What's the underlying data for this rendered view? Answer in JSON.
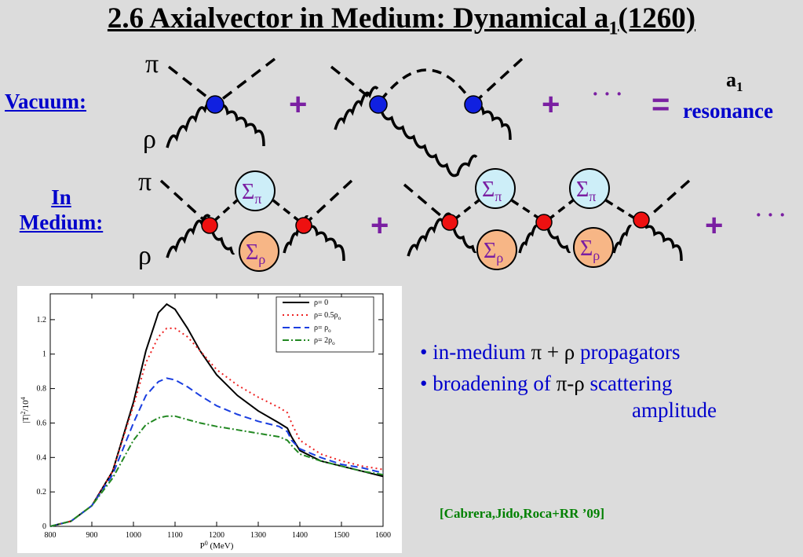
{
  "title_main": "2.6 Axialvector in Medium: Dynamical a",
  "title_sub": "1",
  "title_tail": "(1260)",
  "vacuum_label": "Vacuum:",
  "in_label": "In",
  "medium_label": "Medium:",
  "diagram": {
    "pi": "π",
    "rho": "ρ",
    "plus": "+",
    "dots": "· · ·",
    "equals": "=",
    "a_main": "a",
    "a_sub": "1",
    "resonance": "resonance",
    "sigma": "Σ",
    "sigma_pi_sub": "π",
    "sigma_rho_sub": "ρ"
  },
  "colors": {
    "vertex_vacuum": "#1020e0",
    "vertex_medium": "#ee1010",
    "sigma_pi_fill": "#cdeef8",
    "sigma_rho_fill": "#f7b686",
    "purple": "#7a1fa2",
    "blue_text": "#0000cc",
    "green_text": "#008000"
  },
  "bullets": [
    {
      "bullet": "•",
      "a": "in-medium ",
      "b": "π + ρ",
      "c": " propagators"
    },
    {
      "bullet": "•",
      "a": "broadening of ",
      "b": "π-ρ",
      "c": " scattering",
      "d": "amplitude"
    }
  ],
  "citation": "[Cabrera,Jido,Roca+RR ’09]",
  "chart_data": {
    "type": "line",
    "xlabel": "P",
    "xlabel_sup": "0",
    "xlabel_unit": " (MeV)",
    "ylabel": "|T|",
    "ylabel_sup": "2",
    "ylabel_tail": "/10",
    "ylabel_sup2": "4",
    "xlim": [
      800,
      1600
    ],
    "ylim": [
      0,
      1.35
    ],
    "x_ticks": [
      800,
      900,
      1000,
      1100,
      1200,
      1300,
      1400,
      1500,
      1600
    ],
    "y_ticks": [
      0,
      0.2,
      0.4,
      0.6,
      0.8,
      1,
      1.2
    ],
    "y_tick_labels": [
      "0",
      "0.2",
      "0.4",
      "0.6",
      "0.8",
      "1",
      "1.2"
    ],
    "legend_position": "top-right",
    "series": [
      {
        "name": "ρ= 0",
        "name_sub": "",
        "color": "#000000",
        "dash": "",
        "x": [
          800,
          850,
          900,
          950,
          1000,
          1030,
          1060,
          1080,
          1100,
          1130,
          1160,
          1200,
          1250,
          1300,
          1350,
          1370,
          1380,
          1400,
          1450,
          1500,
          1550,
          1600
        ],
        "y": [
          0,
          0.03,
          0.12,
          0.32,
          0.72,
          1.02,
          1.24,
          1.29,
          1.26,
          1.15,
          1.02,
          0.88,
          0.76,
          0.67,
          0.6,
          0.57,
          0.52,
          0.44,
          0.38,
          0.35,
          0.32,
          0.29
        ]
      },
      {
        "name": "ρ= 0.5ρ",
        "name_sub": "o",
        "color": "#ee2222",
        "dash": "2,4",
        "x": [
          800,
          850,
          900,
          950,
          1000,
          1030,
          1060,
          1080,
          1100,
          1130,
          1160,
          1200,
          1250,
          1300,
          1350,
          1370,
          1380,
          1400,
          1450,
          1500,
          1550,
          1600
        ],
        "y": [
          0,
          0.03,
          0.12,
          0.32,
          0.7,
          0.95,
          1.1,
          1.15,
          1.15,
          1.1,
          1.02,
          0.91,
          0.82,
          0.75,
          0.69,
          0.66,
          0.6,
          0.5,
          0.42,
          0.38,
          0.35,
          0.33
        ]
      },
      {
        "name": "ρ= ρ",
        "name_sub": "o",
        "color": "#1a3ee0",
        "dash": "9,5",
        "x": [
          800,
          850,
          900,
          950,
          1000,
          1030,
          1060,
          1080,
          1100,
          1130,
          1160,
          1200,
          1250,
          1300,
          1350,
          1370,
          1380,
          1400,
          1450,
          1500,
          1550,
          1600
        ],
        "y": [
          0,
          0.03,
          0.12,
          0.3,
          0.6,
          0.76,
          0.84,
          0.86,
          0.85,
          0.81,
          0.76,
          0.7,
          0.65,
          0.61,
          0.58,
          0.55,
          0.5,
          0.45,
          0.4,
          0.36,
          0.34,
          0.31
        ]
      },
      {
        "name": "ρ= 2ρ",
        "name_sub": "o",
        "color": "#228822",
        "dash": "8,3,2,3",
        "x": [
          800,
          850,
          900,
          950,
          1000,
          1030,
          1060,
          1080,
          1100,
          1130,
          1160,
          1200,
          1250,
          1300,
          1350,
          1370,
          1380,
          1400,
          1450,
          1500,
          1550,
          1600
        ],
        "y": [
          0,
          0.03,
          0.12,
          0.28,
          0.5,
          0.59,
          0.63,
          0.64,
          0.64,
          0.62,
          0.6,
          0.58,
          0.56,
          0.54,
          0.52,
          0.5,
          0.47,
          0.42,
          0.38,
          0.35,
          0.32,
          0.3
        ]
      }
    ]
  }
}
